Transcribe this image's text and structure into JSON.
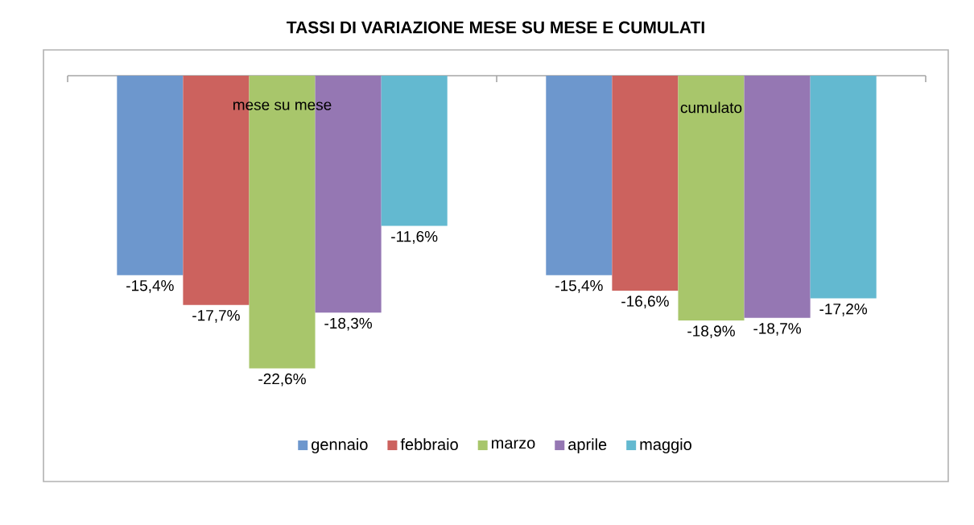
{
  "chart_data": {
    "type": "bar",
    "title": "TASSI DI VARIAZIONE MESE SU MESE E CUMULATI",
    "categories": [
      "mese su mese",
      "cumulato"
    ],
    "series": [
      {
        "name": "gennaio",
        "color": "#6d97cd",
        "values": [
          -15.4,
          -15.4
        ],
        "value_labels": [
          "-15,4%",
          "-15,4%"
        ]
      },
      {
        "name": "febbraio",
        "color": "#cc625e",
        "values": [
          -17.7,
          -16.6
        ],
        "value_labels": [
          "-17,7%",
          "-16,6%"
        ]
      },
      {
        "name": "marzo",
        "color": "#a8c66b",
        "values": [
          -22.6,
          -18.9
        ],
        "value_labels": [
          "-22,6%",
          "-18,9%"
        ]
      },
      {
        "name": "aprile",
        "color": "#9577b3",
        "values": [
          -18.3,
          -18.7
        ],
        "value_labels": [
          "-18,3%",
          "-18,7%"
        ]
      },
      {
        "name": "maggio",
        "color": "#63b9d0",
        "values": [
          -11.6,
          -17.2
        ],
        "value_labels": [
          "-11,6%",
          "-17,2%"
        ]
      }
    ],
    "legend": "bottom"
  }
}
